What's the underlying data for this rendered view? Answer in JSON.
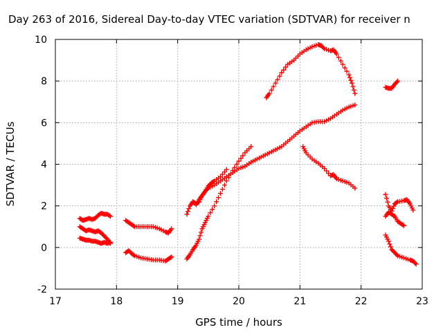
{
  "chart_data": {
    "type": "scatter",
    "title": "Day 263 of 2016, Sidereal Day-to-day VTEC variation (SDTVAR) for receiver n",
    "xlabel": "GPS time / hours",
    "ylabel": "SDTVAR / TECUs",
    "xlim": [
      17,
      23
    ],
    "ylim": [
      -2,
      10
    ],
    "xticks": [
      "17",
      "18",
      "19",
      "20",
      "21",
      "22",
      "23"
    ],
    "yticks": [
      "-2",
      "0",
      "2",
      "4",
      "6",
      "8",
      "10"
    ],
    "grid": true,
    "legend": "none",
    "marker": "+",
    "color": "#ff0000",
    "series": [
      {
        "x": [
          17.4,
          17.45,
          17.5,
          17.55,
          17.6,
          17.65,
          17.7,
          17.75,
          17.8,
          17.85,
          17.9
        ],
        "y": [
          1.4,
          1.3,
          1.35,
          1.4,
          1.35,
          1.4,
          1.55,
          1.65,
          1.6,
          1.6,
          1.5
        ]
      },
      {
        "x": [
          17.4,
          17.45,
          17.5,
          17.55,
          17.6,
          17.65,
          17.7,
          17.75,
          17.8,
          17.85,
          17.9
        ],
        "y": [
          1.0,
          0.9,
          0.8,
          0.85,
          0.8,
          0.75,
          0.8,
          0.7,
          0.55,
          0.4,
          0.2
        ]
      },
      {
        "x": [
          17.4,
          17.45,
          17.5,
          17.55,
          17.6,
          17.65,
          17.7,
          17.75,
          17.8,
          17.85,
          17.9
        ],
        "y": [
          0.45,
          0.4,
          0.35,
          0.35,
          0.3,
          0.3,
          0.25,
          0.2,
          0.25,
          0.2,
          0.25
        ]
      },
      {
        "x": [
          18.15,
          18.2,
          18.25,
          18.3,
          18.4,
          18.5,
          18.6,
          18.7,
          18.8,
          18.85,
          18.9
        ],
        "y": [
          1.3,
          1.2,
          1.1,
          1.0,
          1.0,
          1.0,
          1.0,
          0.9,
          0.75,
          0.7,
          0.9
        ]
      },
      {
        "x": [
          18.15,
          18.2,
          18.25,
          18.3,
          18.4,
          18.5,
          18.6,
          18.7,
          18.8,
          18.85,
          18.9
        ],
        "y": [
          -0.25,
          -0.15,
          -0.3,
          -0.4,
          -0.5,
          -0.55,
          -0.6,
          -0.6,
          -0.65,
          -0.55,
          -0.45
        ]
      },
      {
        "x": [
          19.15,
          19.2,
          19.25,
          19.3,
          19.35,
          19.4,
          19.45,
          19.5,
          19.6,
          19.7,
          19.8,
          19.9,
          20.0,
          20.1,
          20.2,
          20.3,
          20.4,
          20.5,
          20.6,
          20.7,
          20.8,
          20.9,
          21.0,
          21.1,
          21.2,
          21.3,
          21.4,
          21.5,
          21.6,
          21.7,
          21.8,
          21.9
        ],
        "y": [
          1.6,
          2.0,
          2.2,
          2.1,
          2.2,
          2.5,
          2.7,
          2.85,
          3.0,
          3.2,
          3.4,
          3.6,
          3.8,
          3.9,
          4.1,
          4.25,
          4.4,
          4.55,
          4.7,
          4.85,
          5.1,
          5.35,
          5.6,
          5.8,
          6.0,
          6.05,
          6.05,
          6.2,
          6.4,
          6.6,
          6.75,
          6.85
        ]
      },
      {
        "x": [
          19.15,
          19.2,
          19.25,
          19.3,
          19.35,
          19.4,
          19.45,
          19.5,
          19.6,
          19.7,
          19.8,
          19.9,
          20.0,
          20.1,
          20.2
        ],
        "y": [
          -0.55,
          -0.35,
          -0.1,
          0.1,
          0.4,
          0.9,
          1.2,
          1.5,
          2.0,
          2.6,
          3.2,
          3.7,
          4.15,
          4.55,
          4.85
        ]
      },
      {
        "x": [
          19.3,
          19.35,
          19.4,
          19.45,
          19.5,
          19.55,
          19.6,
          19.7,
          19.8
        ],
        "y": [
          2.05,
          2.3,
          2.5,
          2.7,
          2.95,
          3.1,
          3.2,
          3.4,
          3.75
        ]
      },
      {
        "x": [
          20.45,
          20.5,
          20.6,
          20.7,
          20.8,
          20.9,
          21.0,
          21.1,
          21.2,
          21.3,
          21.35,
          21.4,
          21.5,
          21.55,
          21.6,
          21.7,
          21.8,
          21.85,
          21.9
        ],
        "y": [
          7.2,
          7.4,
          7.9,
          8.4,
          8.8,
          9.0,
          9.3,
          9.5,
          9.65,
          9.75,
          9.7,
          9.55,
          9.45,
          9.5,
          9.3,
          8.8,
          8.3,
          7.9,
          7.4
        ]
      },
      {
        "x": [
          21.05,
          21.1,
          21.2,
          21.3,
          21.4,
          21.5,
          21.55,
          21.6,
          21.7,
          21.8,
          21.9
        ],
        "y": [
          4.85,
          4.55,
          4.25,
          4.05,
          3.8,
          3.45,
          3.5,
          3.3,
          3.2,
          3.1,
          2.85
        ]
      },
      {
        "x": [
          22.4,
          22.45,
          22.5,
          22.55,
          22.6
        ],
        "y": [
          7.7,
          7.65,
          7.65,
          7.85,
          8.0
        ]
      },
      {
        "x": [
          22.4,
          22.45,
          22.5,
          22.55,
          22.6,
          22.7,
          22.75,
          22.8,
          22.85
        ],
        "y": [
          2.55,
          2.0,
          1.75,
          2.1,
          2.2,
          2.25,
          2.3,
          2.1,
          1.8
        ]
      },
      {
        "x": [
          22.4,
          22.45,
          22.5,
          22.55,
          22.6,
          22.65,
          22.7
        ],
        "y": [
          1.5,
          1.7,
          1.6,
          1.5,
          1.25,
          1.15,
          1.05
        ]
      },
      {
        "x": [
          22.4,
          22.45,
          22.5,
          22.55,
          22.6,
          22.7,
          22.8,
          22.85,
          22.9
        ],
        "y": [
          0.6,
          0.3,
          -0.1,
          -0.25,
          -0.4,
          -0.5,
          -0.6,
          -0.65,
          -0.8
        ]
      }
    ]
  }
}
